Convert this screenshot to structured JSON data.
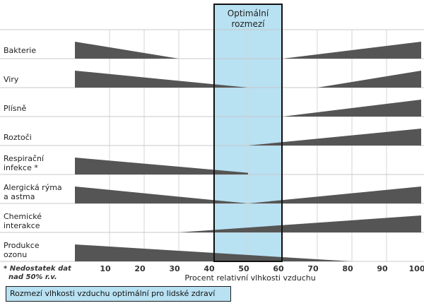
{
  "chart_data": {
    "type": "area",
    "title": "",
    "xlabel": "Procent relativní vlhkosti vzduchu",
    "ylabel": "",
    "xlim": [
      0,
      100
    ],
    "x_ticks": [
      "10",
      "20",
      "30",
      "40",
      "50",
      "60",
      "70",
      "80",
      "90",
      "100"
    ],
    "optimal_band": {
      "label_lines": [
        "Optimální",
        "rozmezí"
      ],
      "x_range": [
        40,
        60
      ],
      "color": "#b8e1f2"
    },
    "footnote_lines": [
      "* Nedostatek dat",
      "nad 50% r.v."
    ],
    "legend_label": "Rozmezí vlhkosti vzduchu optimální pro lidské zdraví",
    "series_color": "#555555",
    "categories": [
      {
        "label_lines": [
          "Bakterie"
        ],
        "shapes": [
          {
            "x": [
              0,
              30
            ],
            "thickness": [
              1.0,
              0.0
            ]
          },
          {
            "x": [
              60,
              100
            ],
            "thickness": [
              0.0,
              1.0
            ]
          }
        ]
      },
      {
        "label_lines": [
          "Viry"
        ],
        "shapes": [
          {
            "x": [
              0,
              50
            ],
            "thickness": [
              1.0,
              0.0
            ]
          },
          {
            "x": [
              70,
              100
            ],
            "thickness": [
              0.0,
              1.0
            ]
          }
        ]
      },
      {
        "label_lines": [
          "Plísně"
        ],
        "shapes": [
          {
            "x": [
              60,
              100
            ],
            "thickness": [
              0.0,
              1.0
            ]
          }
        ]
      },
      {
        "label_lines": [
          "Roztoči"
        ],
        "shapes": [
          {
            "x": [
              50,
              100
            ],
            "thickness": [
              0.0,
              1.0
            ]
          }
        ]
      },
      {
        "label_lines": [
          "Respirační",
          "infekce *"
        ],
        "shapes": [
          {
            "x": [
              0,
              50
            ],
            "thickness": [
              1.0,
              0.1
            ]
          }
        ]
      },
      {
        "label_lines": [
          "Alergická rýma",
          "a astma"
        ],
        "shapes": [
          {
            "x": [
              0,
              50
            ],
            "thickness": [
              1.0,
              0.0
            ]
          },
          {
            "x": [
              50,
              100
            ],
            "thickness": [
              0.0,
              1.0
            ]
          }
        ]
      },
      {
        "label_lines": [
          "Chemické",
          "interakce"
        ],
        "shapes": [
          {
            "x": [
              30,
              100
            ],
            "thickness": [
              0.0,
              1.0
            ]
          }
        ]
      },
      {
        "label_lines": [
          "Produkce",
          "ozonu"
        ],
        "shapes": [
          {
            "x": [
              0,
              80
            ],
            "thickness": [
              1.0,
              0.0
            ]
          }
        ]
      }
    ]
  }
}
